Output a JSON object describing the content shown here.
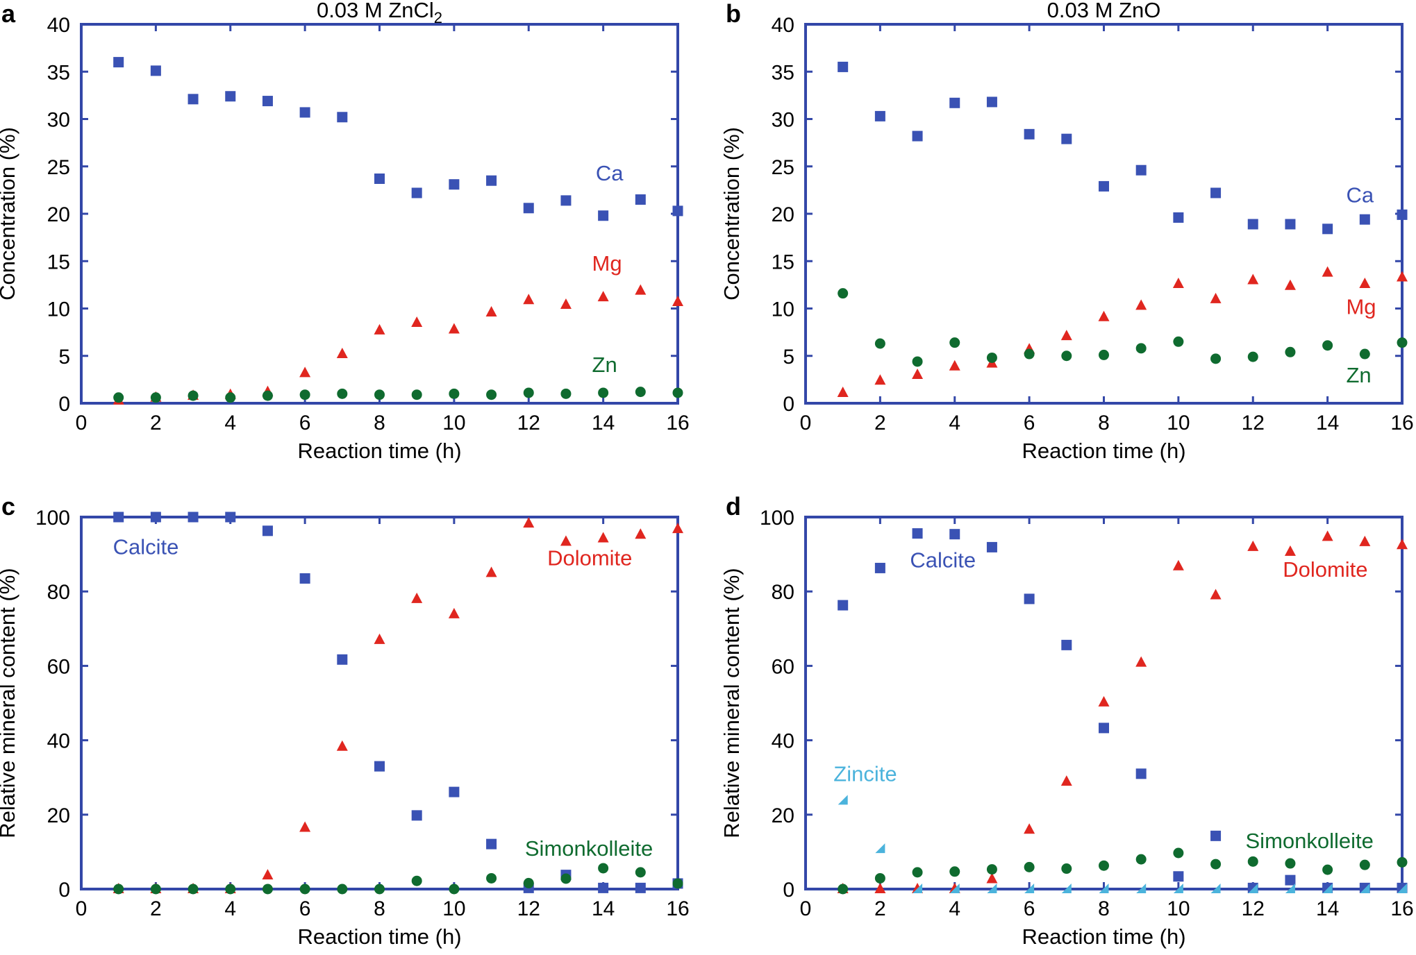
{
  "figure": {
    "panels": [
      "a",
      "b",
      "c",
      "d"
    ]
  },
  "colors": {
    "axis": "#3347a8",
    "blue": "#3a52b4",
    "red": "#e0261f",
    "green": "#0f6b2f",
    "cyan": "#4bb3dc"
  },
  "chart_data": [
    {
      "panel_label": "a",
      "type": "scatter",
      "title_main": "0.03 M ZnCl",
      "title_sub": "2",
      "xlabel": "Reaction time (h)",
      "ylabel": "Concentration (%)",
      "xlim": [
        0,
        16
      ],
      "ylim": [
        0,
        40
      ],
      "xticks": [
        0,
        2,
        4,
        6,
        8,
        10,
        12,
        14,
        16
      ],
      "yticks": [
        0,
        5,
        10,
        15,
        20,
        25,
        30,
        35,
        40
      ],
      "series": [
        {
          "name": "Ca",
          "marker": "square",
          "color": "blue",
          "x": [
            1,
            2,
            3,
            4,
            5,
            6,
            7,
            8,
            9,
            10,
            11,
            12,
            13,
            14,
            15,
            16
          ],
          "values": [
            36.0,
            35.1,
            32.1,
            32.4,
            31.9,
            30.7,
            30.2,
            23.7,
            22.2,
            23.1,
            23.5,
            20.6,
            21.4,
            19.8,
            21.5,
            20.3
          ]
        },
        {
          "name": "Mg",
          "marker": "triangle",
          "color": "red",
          "x": [
            1,
            2,
            3,
            4,
            5,
            6,
            7,
            8,
            9,
            10,
            11,
            12,
            13,
            14,
            15,
            16
          ],
          "values": [
            0.3,
            0.6,
            0.8,
            0.9,
            1.2,
            3.2,
            5.2,
            7.7,
            8.5,
            7.8,
            9.6,
            10.9,
            10.4,
            11.2,
            11.9,
            10.7
          ]
        },
        {
          "name": "Zn",
          "marker": "circle",
          "color": "green",
          "x": [
            1,
            2,
            3,
            4,
            5,
            6,
            7,
            8,
            9,
            10,
            11,
            12,
            13,
            14,
            15,
            16
          ],
          "values": [
            0.6,
            0.6,
            0.8,
            0.6,
            0.8,
            0.9,
            1.0,
            0.9,
            0.9,
            1.0,
            0.9,
            1.1,
            1.0,
            1.1,
            1.2,
            1.1
          ]
        }
      ],
      "annotations": [
        {
          "text": "Ca",
          "color": "blue",
          "at": [
            13.8,
            23.5
          ]
        },
        {
          "text": "Mg",
          "color": "red",
          "at": [
            13.7,
            14.0
          ]
        },
        {
          "text": "Zn",
          "color": "green",
          "at": [
            13.7,
            3.3
          ]
        }
      ]
    },
    {
      "panel_label": "b",
      "type": "scatter",
      "title_main": "0.03 M ZnO",
      "title_sub": "",
      "xlabel": "Reaction time (h)",
      "ylabel": "Concentration (%)",
      "xlim": [
        0,
        16
      ],
      "ylim": [
        0,
        40
      ],
      "xticks": [
        0,
        2,
        4,
        6,
        8,
        10,
        12,
        14,
        16
      ],
      "yticks": [
        0,
        5,
        10,
        15,
        20,
        25,
        30,
        35,
        40
      ],
      "series": [
        {
          "name": "Ca",
          "marker": "square",
          "color": "blue",
          "x": [
            1,
            2,
            3,
            4,
            5,
            6,
            7,
            8,
            9,
            10,
            11,
            12,
            13,
            14,
            15,
            16
          ],
          "values": [
            35.5,
            30.3,
            28.2,
            31.7,
            31.8,
            28.4,
            27.9,
            22.9,
            24.6,
            19.6,
            22.2,
            18.9,
            18.9,
            18.4,
            19.4,
            19.9
          ]
        },
        {
          "name": "Mg",
          "marker": "triangle",
          "color": "red",
          "x": [
            1,
            2,
            3,
            4,
            5,
            6,
            7,
            8,
            9,
            10,
            11,
            12,
            13,
            14,
            15,
            16
          ],
          "values": [
            1.1,
            2.4,
            3.0,
            3.9,
            4.2,
            5.7,
            7.1,
            9.1,
            10.3,
            12.6,
            11.0,
            13.0,
            12.4,
            13.8,
            12.6,
            13.3
          ]
        },
        {
          "name": "Zn",
          "marker": "circle",
          "color": "green",
          "x": [
            1,
            2,
            3,
            4,
            5,
            6,
            7,
            8,
            9,
            10,
            11,
            12,
            13,
            14,
            15,
            16
          ],
          "values": [
            11.6,
            6.3,
            4.4,
            6.4,
            4.8,
            5.2,
            5.0,
            5.1,
            5.8,
            6.5,
            4.7,
            4.9,
            5.4,
            6.1,
            5.2,
            6.4
          ]
        }
      ],
      "annotations": [
        {
          "text": "Ca",
          "color": "blue",
          "at": [
            14.5,
            21.2
          ]
        },
        {
          "text": "Mg",
          "color": "red",
          "at": [
            14.5,
            9.4
          ]
        },
        {
          "text": "Zn",
          "color": "green",
          "at": [
            14.5,
            2.2
          ]
        }
      ]
    },
    {
      "panel_label": "c",
      "type": "scatter",
      "title_main": "",
      "title_sub": "",
      "xlabel": "Reaction time (h)",
      "ylabel": "Relative mineral content (%)",
      "xlim": [
        0,
        16
      ],
      "ylim": [
        0,
        100
      ],
      "xticks": [
        0,
        2,
        4,
        6,
        8,
        10,
        12,
        14,
        16
      ],
      "yticks": [
        0,
        20,
        40,
        60,
        80,
        100
      ],
      "series": [
        {
          "name": "Calcite",
          "marker": "square",
          "color": "blue",
          "x": [
            1,
            2,
            3,
            4,
            5,
            6,
            7,
            8,
            9,
            10,
            11,
            12,
            13,
            14,
            15,
            16
          ],
          "values": [
            100,
            100,
            100,
            100,
            96.3,
            83.5,
            61.7,
            33.0,
            19.8,
            26.1,
            12.1,
            0.3,
            3.8,
            0.3,
            0.3,
            1.5
          ]
        },
        {
          "name": "Dolomite",
          "marker": "triangle",
          "color": "red",
          "x": [
            1,
            2,
            3,
            4,
            5,
            6,
            7,
            8,
            9,
            10,
            11,
            12,
            13,
            14,
            15,
            16
          ],
          "values": [
            0,
            0,
            0,
            0,
            3.7,
            16.5,
            38.3,
            67.0,
            78.0,
            73.9,
            85.0,
            98.3,
            93.4,
            94.3,
            95.3,
            96.8
          ]
        },
        {
          "name": "Simonkolleite",
          "marker": "circle",
          "color": "green",
          "x": [
            1,
            2,
            3,
            4,
            5,
            6,
            7,
            8,
            9,
            10,
            11,
            12,
            13,
            14,
            15,
            16
          ],
          "values": [
            0,
            0,
            0,
            0,
            0,
            0,
            0,
            0,
            2.2,
            0,
            2.9,
            1.6,
            2.8,
            5.6,
            4.5,
            1.5
          ]
        }
      ],
      "annotations": [
        {
          "text": "Calcite",
          "color": "blue",
          "at": [
            0.85,
            90.0
          ]
        },
        {
          "text": "Dolomite",
          "color": "red",
          "at": [
            12.5,
            87.0
          ]
        },
        {
          "text": "Simonkolleite",
          "color": "green",
          "at": [
            11.9,
            9.0
          ]
        }
      ]
    },
    {
      "panel_label": "d",
      "type": "scatter",
      "title_main": "",
      "title_sub": "",
      "xlabel": "Reaction time (h)",
      "ylabel": "Relative mineral content (%)",
      "xlim": [
        0,
        16
      ],
      "ylim": [
        0,
        100
      ],
      "xticks": [
        0,
        2,
        4,
        6,
        8,
        10,
        12,
        14,
        16
      ],
      "yticks": [
        0,
        20,
        40,
        60,
        80,
        100
      ],
      "series": [
        {
          "name": "Calcite",
          "marker": "square",
          "color": "blue",
          "x": [
            1,
            2,
            3,
            4,
            5,
            6,
            7,
            8,
            9,
            10,
            11,
            12,
            13,
            14,
            15,
            16
          ],
          "values": [
            76.3,
            86.3,
            95.6,
            95.4,
            91.9,
            78.0,
            65.6,
            43.3,
            31.0,
            3.4,
            14.3,
            0.3,
            2.4,
            0.3,
            0.3,
            0.3
          ]
        },
        {
          "name": "Dolomite",
          "marker": "triangle",
          "color": "red",
          "x": [
            1,
            2,
            3,
            4,
            5,
            6,
            7,
            8,
            9,
            10,
            11,
            12,
            13,
            14,
            15,
            16
          ],
          "values": [
            0,
            0,
            0,
            0,
            2.7,
            16.0,
            28.9,
            50.2,
            60.9,
            86.8,
            79.0,
            92.0,
            90.7,
            94.7,
            93.3,
            92.5
          ]
        },
        {
          "name": "Simonkolleite",
          "marker": "circle",
          "color": "green",
          "x": [
            1,
            2,
            3,
            4,
            5,
            6,
            7,
            8,
            9,
            10,
            11,
            12,
            13,
            14,
            15,
            16
          ],
          "values": [
            0,
            2.9,
            4.5,
            4.7,
            5.3,
            5.9,
            5.5,
            6.3,
            8.0,
            9.7,
            6.7,
            7.4,
            6.9,
            5.2,
            6.5,
            7.2
          ]
        },
        {
          "name": "Zincite",
          "marker": "half-triangle",
          "color": "cyan",
          "x": [
            1,
            2,
            3,
            4,
            5,
            6,
            7,
            8,
            9,
            10,
            11,
            12,
            13,
            14,
            15,
            16
          ],
          "values": [
            23.8,
            10.8,
            0,
            0,
            0,
            0,
            0,
            0,
            0,
            0,
            0,
            0,
            0,
            0,
            0,
            0
          ]
        }
      ],
      "annotations": [
        {
          "text": "Calcite",
          "color": "blue",
          "at": [
            2.8,
            86.5
          ]
        },
        {
          "text": "Dolomite",
          "color": "red",
          "at": [
            12.8,
            84.0
          ]
        },
        {
          "text": "Simonkolleite",
          "color": "green",
          "at": [
            11.8,
            11.0
          ]
        },
        {
          "text": "Zincite",
          "color": "cyan",
          "at": [
            0.75,
            29.0
          ]
        }
      ]
    }
  ]
}
